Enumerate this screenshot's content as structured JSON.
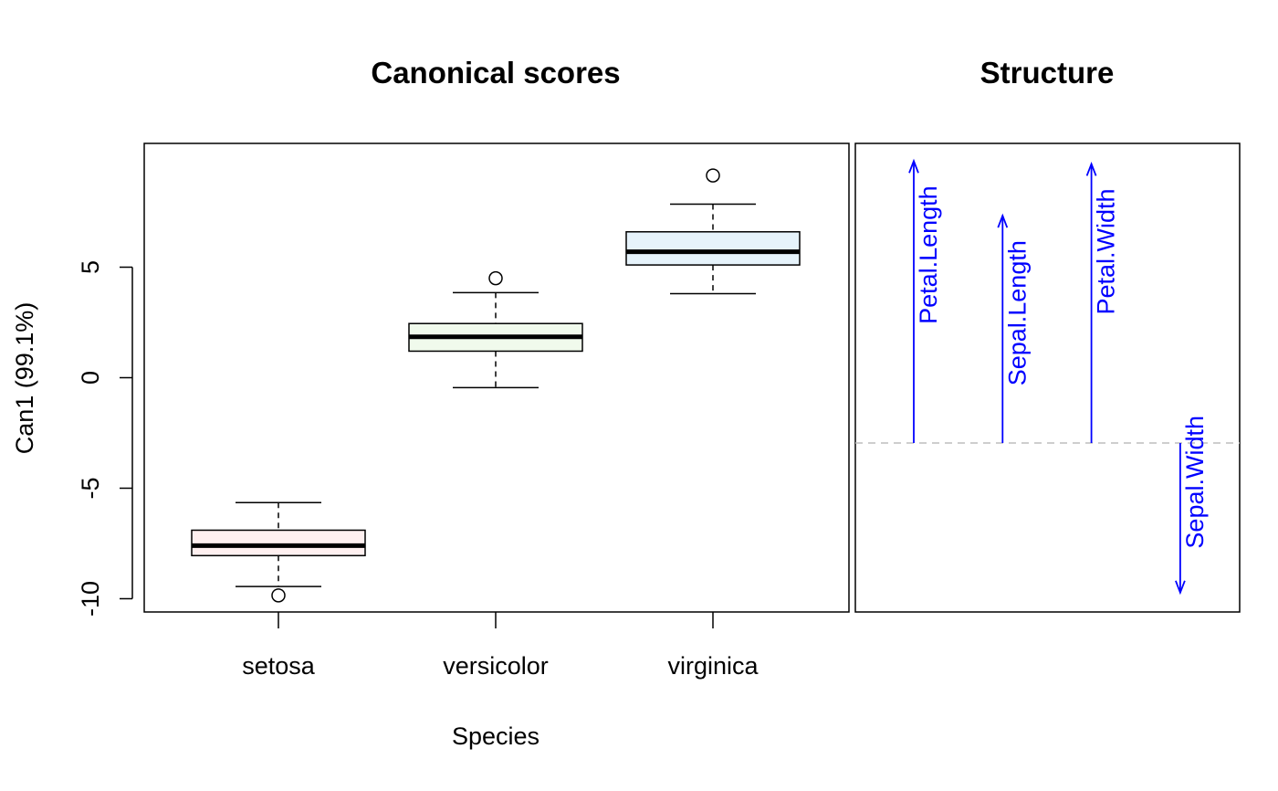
{
  "chart_data": [
    {
      "type": "box",
      "title": "Canonical scores",
      "xlabel": "Species",
      "ylabel": "Can1 (99.1%)",
      "ylim": [
        -10.6,
        10.6
      ],
      "yticks": [
        -10,
        -5,
        0,
        5
      ],
      "ytick_labels": [
        "-10",
        "-5",
        "0",
        "5"
      ],
      "categories": [
        "setosa",
        "versicolor",
        "virginica"
      ],
      "boxes": [
        {
          "category": "setosa",
          "whisker_low": -9.45,
          "q1": -8.05,
          "median": -7.6,
          "q3": -6.9,
          "whisker_high": -5.65,
          "outliers": [
            -9.85
          ],
          "fill": "#fff0f0"
        },
        {
          "category": "versicolor",
          "whisker_low": -0.45,
          "q1": 1.2,
          "median": 1.85,
          "q3": 2.45,
          "whisker_high": 3.85,
          "outliers": [
            4.5
          ],
          "fill": "#f0faec"
        },
        {
          "category": "virginica",
          "whisker_low": 3.8,
          "q1": 5.1,
          "median": 5.7,
          "q3": 6.6,
          "whisker_high": 7.85,
          "outliers": [
            9.15
          ],
          "fill": "#e6f3fb"
        }
      ],
      "grid": false
    },
    {
      "type": "vector",
      "title": "Structure",
      "vectors": [
        {
          "label": "Petal.Length",
          "value": 0.98
        },
        {
          "label": "Sepal.Length",
          "value": 0.79
        },
        {
          "label": "Petal.Width",
          "value": 0.97
        },
        {
          "label": "Sepal.Width",
          "value": -0.52
        }
      ],
      "color": "#0000ff",
      "reference_line_color": "#bebebe"
    }
  ]
}
